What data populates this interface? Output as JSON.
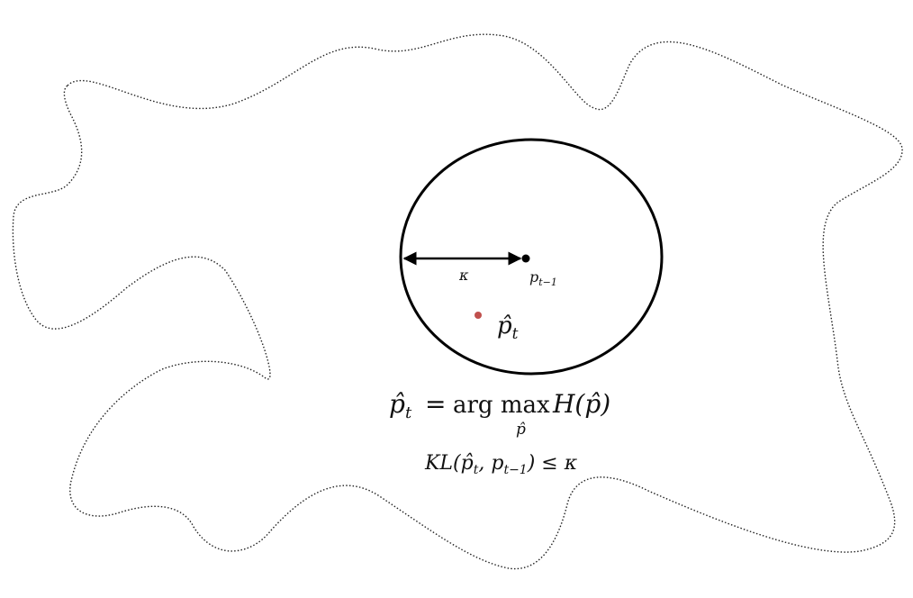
{
  "diagram": {
    "kappa_label": "κ",
    "p_prev_base": "p",
    "p_prev_sub": "t−1",
    "p_hat_base": "p̂",
    "p_hat_sub": "t",
    "objective": {
      "lhs_base": "p̂",
      "lhs_sub": "t",
      "equals": "=",
      "argmax": "arg max",
      "argmax_sub": "p̂",
      "function": "H(p̂)"
    },
    "constraint": {
      "text": "KL(p̂",
      "sub_t": "t",
      "comma": ", p",
      "sub_prev": "t−1",
      "rest": ") ≤ κ"
    },
    "colors": {
      "outline": "#222222",
      "circle": "#000000",
      "center_point": "#000000",
      "estimate_point": "#c0504d"
    }
  }
}
